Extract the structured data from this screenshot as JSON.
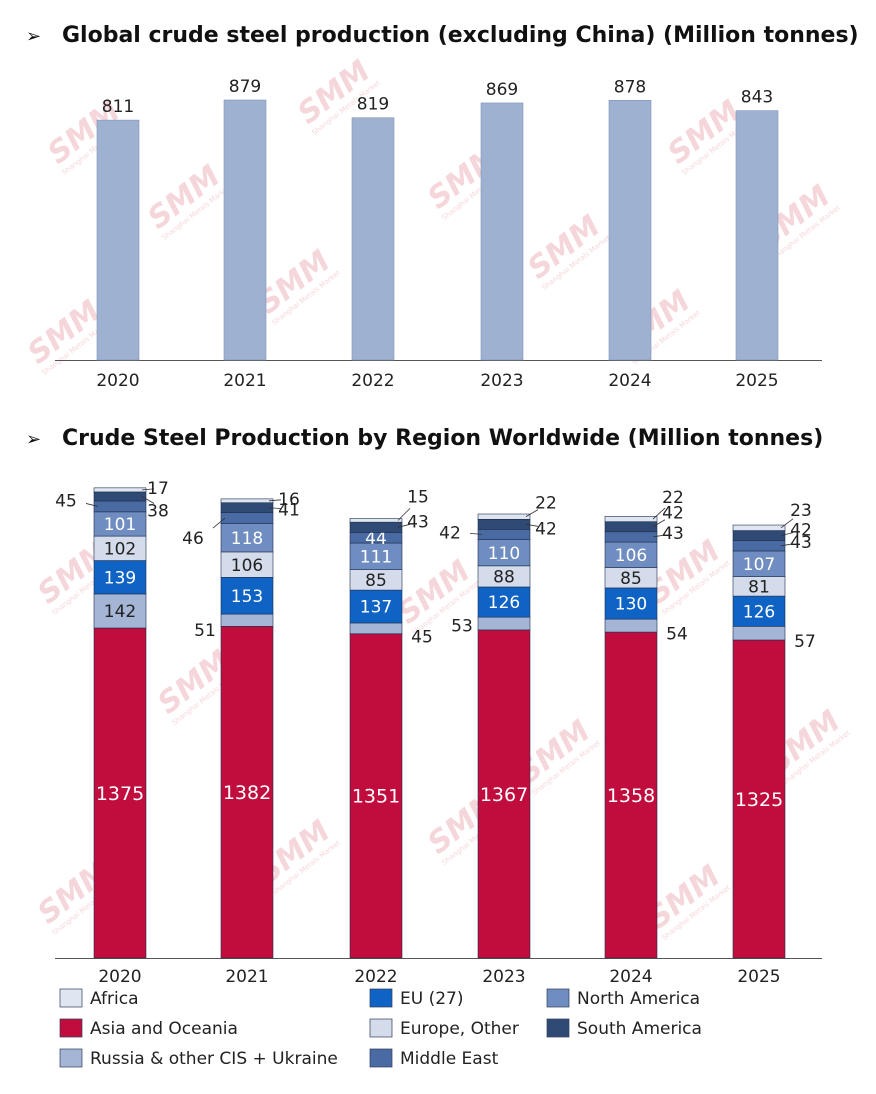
{
  "charts": {
    "top": {
      "bullet": "➢",
      "title": "Global crude steel production (excluding China) (Million tonnes)"
    },
    "bottom": {
      "bullet": "➢",
      "title": "Crude Steel Production by Region Worldwide (Million tonnes)"
    }
  },
  "watermark": {
    "text": "SMM",
    "subtext": "Shanghai Metals Market",
    "color": "#e8a0a8"
  },
  "colors": {
    "top_bar": "#9fb1d0",
    "Asia and Oceania": "#c00d3e",
    "Russia & other CIS + Ukraine": "#a4b5d5",
    "EU (27)": "#0e63c4",
    "Europe, Other": "#d4dcec",
    "North America": "#6f8dc0",
    "Middle East": "#4a6aa4",
    "South America": "#2f4a74",
    "Africa": "#dfe6f1"
  },
  "chart_data": [
    {
      "type": "bar",
      "title": "Global crude steel production (excluding China) (Million tonnes)",
      "categories": [
        "2020",
        "2021",
        "2022",
        "2023",
        "2024",
        "2025"
      ],
      "values": [
        811,
        879,
        819,
        869,
        878,
        843
      ],
      "data_labels": [
        "811",
        "879",
        "819",
        "869",
        "878",
        "843"
      ],
      "xlabel": "",
      "ylabel": "",
      "ylim": [
        0,
        880
      ],
      "grid": false
    },
    {
      "type": "bar",
      "stacked": true,
      "title": "Crude Steel Production by Region Worldwide (Million tonnes)",
      "categories": [
        "2020",
        "2021",
        "2022",
        "2023",
        "2024",
        "2025"
      ],
      "legend_placement": "bottom",
      "ylim": [
        0,
        1880
      ],
      "grid": false,
      "series": [
        {
          "name": "Asia and Oceania",
          "values": [
            1375,
            1382,
            1351,
            1367,
            1358,
            1325
          ]
        },
        {
          "name": "Russia & other CIS + Ukraine",
          "values": [
            142,
            51,
            45,
            53,
            54,
            57
          ]
        },
        {
          "name": "EU (27)",
          "values": [
            139,
            153,
            137,
            126,
            130,
            126
          ]
        },
        {
          "name": "Europe, Other",
          "values": [
            102,
            106,
            85,
            88,
            85,
            81
          ]
        },
        {
          "name": "North America",
          "values": [
            101,
            118,
            111,
            110,
            106,
            107
          ]
        },
        {
          "name": "Middle East",
          "values": [
            45,
            46,
            44,
            42,
            43,
            43
          ]
        },
        {
          "name": "South America",
          "values": [
            38,
            41,
            43,
            42,
            42,
            42
          ]
        },
        {
          "name": "Africa",
          "values": [
            17,
            16,
            15,
            22,
            22,
            23
          ]
        }
      ],
      "legend_entries": [
        "Africa",
        "EU (27)",
        "North America",
        "Asia and Oceania",
        "Europe, Other",
        "South America",
        "Russia & other CIS + Ukraine",
        "Middle East"
      ]
    }
  ]
}
